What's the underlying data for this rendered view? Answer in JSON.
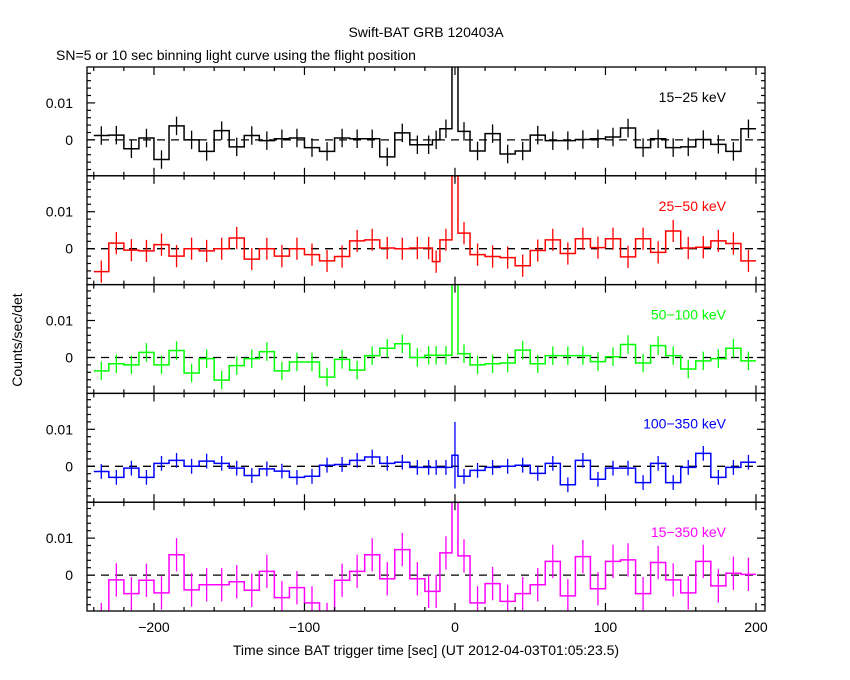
{
  "chart_data": {
    "type": "line",
    "title": "Swift-BAT GRB 120403A",
    "subtitle": "SN=5 or 10 sec binning light curve using the flight position",
    "xlabel": "Time since BAT trigger time [sec] (UT 2012-04-03T01:05:23.5)",
    "ylabel": "Counts/sec/det",
    "xlim": [
      -244.5,
      206
    ],
    "ylim": [
      -0.0097,
      0.0197
    ],
    "x_ticks": [
      -200,
      -100,
      0,
      100,
      200
    ],
    "x_tick_labels": [
      "−200",
      "−100",
      "0",
      "100",
      "200"
    ],
    "y_ticks": [
      0,
      0.01
    ],
    "y_tick_labels": [
      "0",
      "0.01"
    ],
    "bin_edges": [
      -240,
      -230,
      -220,
      -210,
      -200,
      -190,
      -180,
      -170,
      -160,
      -150,
      -140,
      -130,
      -120,
      -110,
      -100,
      -90,
      -80,
      -70,
      -60,
      -50,
      -40,
      -30,
      -20,
      -15,
      -10,
      -2,
      2,
      10,
      20,
      30,
      40,
      50,
      60,
      70,
      80,
      90,
      100,
      110,
      120,
      130,
      140,
      150,
      160,
      170,
      180,
      190,
      200
    ],
    "series": [
      {
        "name": "15−25 keV",
        "color": "#000000",
        "error": 0.0025,
        "values": [
          0.0012,
          0.0013,
          -0.0024,
          0.0005,
          -0.0053,
          0.0038,
          0,
          -0.0031,
          0.0025,
          -0.0019,
          0.0012,
          -0.0002,
          0.0003,
          0.0005,
          -0.0021,
          -0.0031,
          0.0005,
          0.0003,
          0.0003,
          -0.0046,
          0.0019,
          -0.0013,
          -0.0013,
          0,
          0.003,
          0.03,
          0.0023,
          -0.003,
          0.0017,
          -0.0038,
          -0.003,
          0.0013,
          -0.0002,
          -0.0002,
          0.0001,
          0.0003,
          0.0008,
          0.0032,
          -0.0021,
          0.0003,
          -0.0021,
          -0.0019,
          0.0001,
          -0.0012,
          -0.0031,
          0.003
        ]
      },
      {
        "name": "25−50 keV",
        "color": "#ff0000",
        "error": 0.003,
        "values": [
          -0.0062,
          0.0015,
          -0.0004,
          -0.0006,
          0.0011,
          -0.002,
          0,
          -0.0006,
          0,
          0.0029,
          -0.0028,
          0,
          -0.002,
          0,
          -0.0016,
          -0.0033,
          -0.0021,
          0.0021,
          0.0024,
          0.0002,
          0,
          0.0002,
          0.0002,
          -0.0035,
          0.0024,
          0.025,
          0.0042,
          -0.0016,
          -0.0021,
          -0.0024,
          -0.0046,
          -0.0005,
          0.0024,
          -0.0013,
          0.0027,
          0.0003,
          0.0027,
          -0.0022,
          0.0027,
          -0.001,
          0.0048,
          0.0002,
          0.0004,
          0.0021,
          0.0014,
          -0.0033
        ]
      },
      {
        "name": "50−100 keV",
        "color": "#00ff00",
        "error": 0.0025,
        "values": [
          -0.0036,
          -0.0017,
          -0.002,
          0.0014,
          -0.002,
          0.0019,
          -0.0042,
          -0.0003,
          -0.0061,
          -0.0022,
          -0.0003,
          0.0016,
          -0.0036,
          -0.0012,
          -0.0012,
          -0.0053,
          -0.0005,
          -0.0034,
          0.0005,
          0.0025,
          0.0037,
          0,
          0.0006,
          0.0006,
          0.0006,
          0.025,
          0.001,
          -0.002,
          -0.0017,
          -0.0015,
          0.002,
          -0.0017,
          0.0005,
          0.0005,
          0.0005,
          -0.0011,
          0.0002,
          0.0035,
          -0.0015,
          0.0032,
          0.0005,
          -0.0031,
          -0.0009,
          -0.0003,
          0.0025,
          -0.0009
        ]
      },
      {
        "name": "100−350 keV",
        "color": "#0000ff",
        "error": 0.002,
        "values": [
          -0.0014,
          -0.003,
          -0.0005,
          -0.003,
          0.0008,
          0.0016,
          0,
          0.0014,
          0.0008,
          -0.0005,
          -0.0025,
          -0.0007,
          -0.0013,
          -0.003,
          -0.0027,
          0.0003,
          0.0005,
          0.0016,
          0.0025,
          0.0008,
          0.0011,
          -0.0003,
          -0.0003,
          -0.0003,
          -0.0003,
          0.003,
          -0.0027,
          -0.0011,
          -0.0003,
          0,
          0.0003,
          -0.0019,
          0.0008,
          -0.005,
          0.0016,
          -0.0035,
          -0.0005,
          -0.0005,
          -0.0044,
          0.0008,
          -0.0044,
          -0.0003,
          0.0035,
          -0.003,
          -0.0003,
          0.0011
        ]
      },
      {
        "name": "15−350 keV",
        "color": "#ff00ff",
        "error": 0.0045,
        "values": [
          -0.012,
          -0.0013,
          -0.005,
          -0.0014,
          -0.0048,
          0.0055,
          -0.004,
          -0.0026,
          -0.0026,
          -0.0018,
          -0.0041,
          0.001,
          -0.0061,
          -0.0034,
          -0.0075,
          -0.012,
          -0.0014,
          0.001,
          0.0055,
          -0.001,
          0.0069,
          -0.001,
          -0.0044,
          -0.0044,
          0.006,
          0.03,
          0.0052,
          -0.0075,
          -0.0023,
          -0.0071,
          -0.005,
          -0.0026,
          0.0037,
          -0.0056,
          0.005,
          -0.0037,
          0.0037,
          0.0041,
          -0.005,
          0.0034,
          -0.0013,
          -0.0048,
          0.0037,
          -0.0029,
          0.0005,
          0.0002
        ]
      }
    ]
  }
}
